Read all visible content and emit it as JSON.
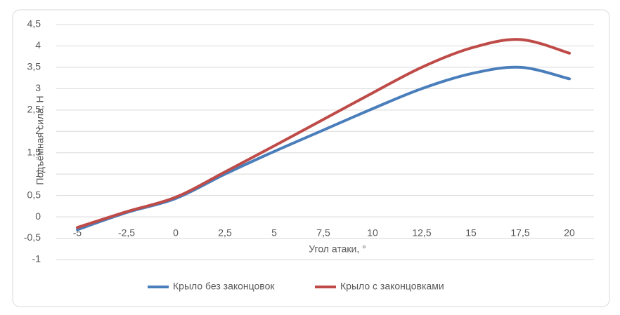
{
  "chart_data": {
    "type": "line",
    "x_label": "Угол атаки, °",
    "y_label": "Подъёмная сила, Н",
    "categories": [
      "-5",
      "-2,5",
      "0",
      "2,5",
      "5",
      "7,5",
      "10",
      "12,5",
      "15",
      "17,5",
      "20"
    ],
    "series": [
      {
        "name": "Крыло без законцовок",
        "color": "#4a7ebb",
        "values": [
          -0.3,
          0.1,
          0.43,
          1.0,
          1.53,
          2.03,
          2.53,
          3.0,
          3.35,
          3.5,
          3.23
        ]
      },
      {
        "name": "Крыло с законцовками",
        "color": "#be4b48",
        "values": [
          -0.25,
          0.12,
          0.46,
          1.05,
          1.66,
          2.28,
          2.9,
          3.5,
          3.95,
          4.15,
          3.83
        ]
      }
    ],
    "ylim": [
      -1,
      4.5
    ],
    "yticks": [
      -1,
      {
        "value": -0.5,
        "label": "-0,5"
      },
      0,
      {
        "value": 0.5,
        "label": "0,5"
      },
      1,
      {
        "value": 1.5,
        "label": "1,5"
      },
      2,
      {
        "value": 2.5,
        "label": "2,5"
      },
      3,
      {
        "value": 3.5,
        "label": "3,5"
      },
      4,
      {
        "value": 4.5,
        "label": "4,5"
      }
    ],
    "grid": true,
    "smooth": true,
    "legend": "bottom"
  }
}
